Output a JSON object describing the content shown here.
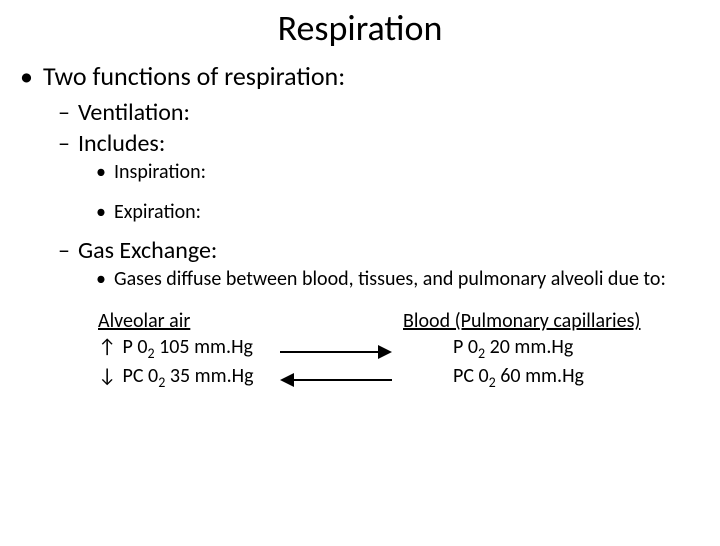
{
  "title": "Respiration",
  "l1": "Two functions of respiration:",
  "l2a": "Ventilation:",
  "l2b": "Includes:",
  "l3a": "Inspiration:",
  "l3b": "Expiration:",
  "l2c": "Gas Exchange:",
  "l3c": "Gases diffuse between blood, tissues, and pulmonary alveoli due to:",
  "diagram": {
    "left": {
      "heading": " Alveolar air ",
      "row1_sym": "↑",
      "row1_pre": " P 0",
      "row1_sub": "2",
      "row1_post": " 105 mm.Hg",
      "row2_sym": "↓",
      "row2_pre": " PC 0",
      "row2_sub": "2",
      "row2_post": " 35 mm.Hg"
    },
    "right": {
      "heading": "Blood (Pulmonary capillaries)",
      "row1_pre": "P 0",
      "row1_sub": "2",
      "row1_post": " 20 mm.Hg",
      "row2_pre": "PC 0",
      "row2_sub": "2",
      "row2_post": " 60 mm.Hg"
    }
  },
  "colors": {
    "text": "#000000",
    "background": "#ffffff",
    "arrow": "#000000"
  }
}
